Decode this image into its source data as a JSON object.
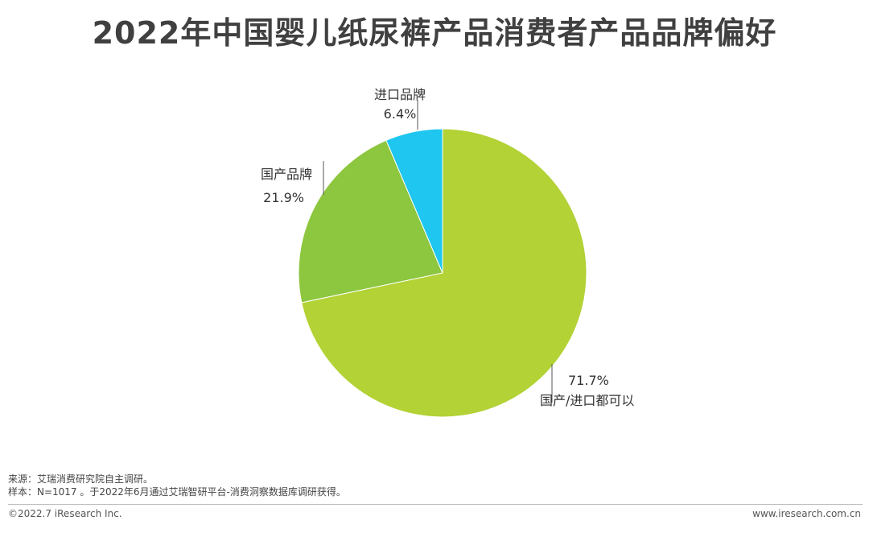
{
  "chart_data": {
    "type": "pie",
    "title": "2022年中国婴儿纸尿裤产品消费者产品品牌偏好",
    "slices": [
      {
        "label": "国产/进口都可以",
        "value": 71.7,
        "value_label": "71.7%",
        "color": "#b2d235"
      },
      {
        "label": "国产品牌",
        "value": 21.9,
        "value_label": "21.9%",
        "color": "#8dc63f"
      },
      {
        "label": "进口品牌",
        "value": 6.4,
        "value_label": "6.4%",
        "color": "#1ec6f0"
      }
    ]
  },
  "footer": {
    "source": "来源：艾瑞消费研究院自主调研。",
    "sample": "样本：N=1017 。于2022年6月通过艾瑞智研平台-消费洞察数据库调研获得。",
    "copyright": "©2022.7 iResearch Inc.",
    "website": "www.iresearch.com.cn"
  }
}
